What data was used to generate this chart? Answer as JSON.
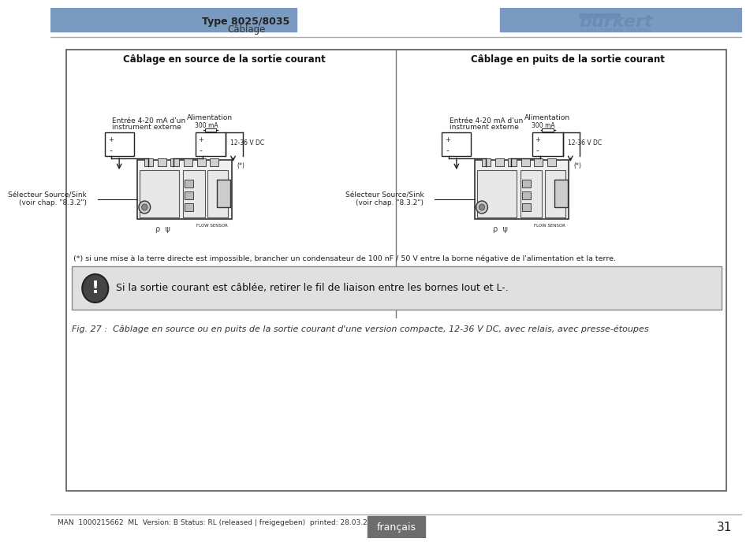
{
  "bg_color": "#ffffff",
  "header_bar_color": "#7a9bbf",
  "header_text_left": "Type 8025/8035",
  "header_subtext_left": "Câblage",
  "page_number": "31",
  "footer_lang": "français",
  "footer_lang_bg": "#6d6d6d",
  "footer_meta": "MAN  1000215662  ML  Version: B Status: RL (released | freigegeben)  printed: 28.03.2014",
  "main_box_border": "#555555",
  "diagram_title_left": "Câblage en source de la sortie courant",
  "diagram_title_right": "Câblage en puits de la sortie courant",
  "note_text": "(*) si une mise à la terre directe est impossible, brancher un condensateur de 100 nF / 50 V entre la borne négative de l'alimentation et la terre.",
  "warning_text": "Si la sortie courant est câblée, retirer le fil de liaison entre les bornes Iout et L-.",
  "fig_caption": "Fig. 27 :  Câblage en source ou en puits de la sortie courant d'une version compacte, 12-36 V DC, avec relais, avec presse-étoupes",
  "warning_bg": "#e0e0e0",
  "warning_border": "#888888"
}
